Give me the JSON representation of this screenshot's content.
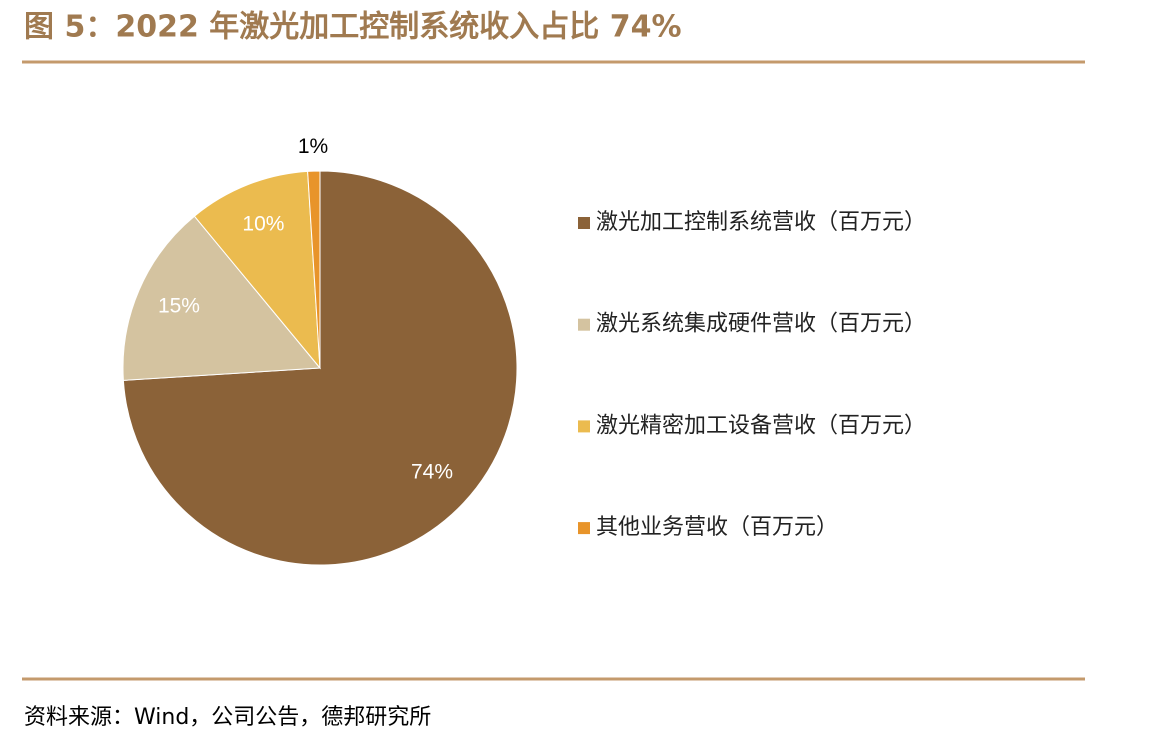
{
  "chart_data": {
    "type": "pie",
    "title": "图 5：2022 年激光加工控制系统收入占比 74%",
    "categories": [
      "激光加工控制系统营收（百万元）",
      "激光系统集成硬件营收（百万元）",
      "激光精密加工设备营收（百万元）",
      "其他业务营收（百万元）"
    ],
    "values": [
      74,
      15,
      10,
      1
    ],
    "value_labels": [
      "74%",
      "15%",
      "10%",
      "1%"
    ],
    "colors": [
      "#8b6238",
      "#d4c3a0",
      "#ebbb4f",
      "#e8942a"
    ],
    "source": "资料来源：Wind，公司公告，德邦研究所"
  }
}
